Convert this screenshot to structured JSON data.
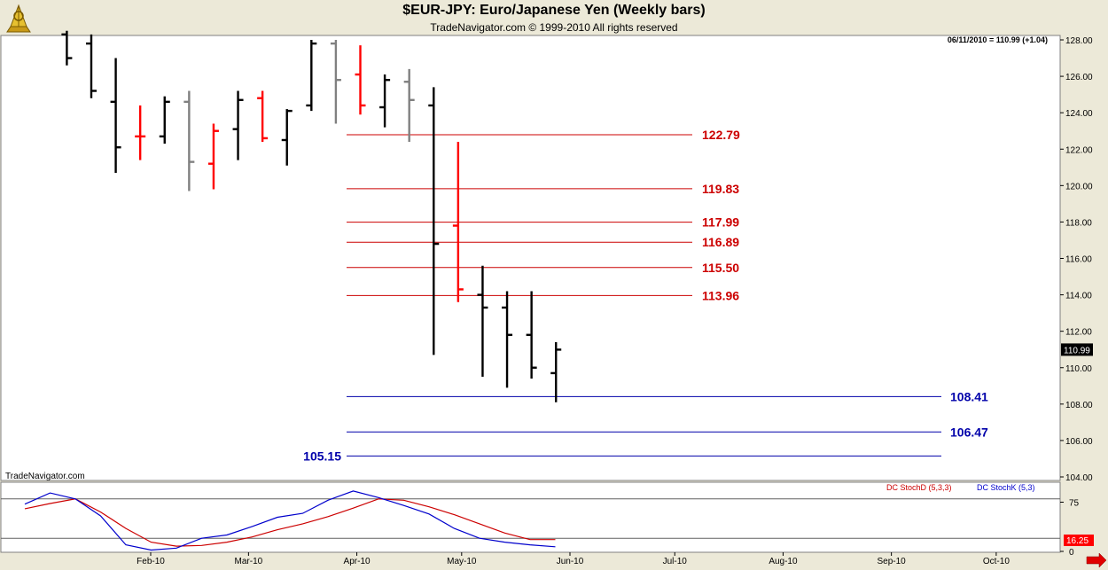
{
  "header": {
    "title": "$EUR-JPY:  Euro/Japanese Yen  (Weekly bars)",
    "subtitle": "TradeNavigator.com © 1999-2010 All rights reserved",
    "last_info": "06/11/2010 = 110.99 (+1.04)",
    "watermark": "TradeNavigator.com"
  },
  "colors": {
    "plot_bg": "#ffffff",
    "up_bar": "#000000",
    "down_bar": "#ff0000",
    "neutral_bar": "#808080",
    "resistance": "#cc0000",
    "support": "#0000aa",
    "stoch_d": "#cc0000",
    "stoch_k": "#0000cc"
  },
  "chart_data": [
    {
      "type": "ohlc",
      "y_axis": {
        "min": 104.0,
        "max": 128.0,
        "ticks": [
          "128.00",
          "126.00",
          "124.00",
          "122.00",
          "120.00",
          "118.00",
          "116.00",
          "114.00",
          "112.00",
          "110.00",
          "108.00",
          "106.00",
          "104.00"
        ]
      },
      "x_axis": {
        "labels": [
          "Feb-10",
          "Mar-10",
          "Apr-10",
          "May-10",
          "Jun-10",
          "Jul-10",
          "Aug-10",
          "Sep-10",
          "Oct-10"
        ]
      },
      "last_price": "110.99",
      "bars": [
        {
          "week": "2010-01-08",
          "open": 128.3,
          "high": 128.5,
          "low": 126.6,
          "close": 127.0,
          "color": "up"
        },
        {
          "week": "2010-01-15",
          "open": 127.8,
          "high": 128.3,
          "low": 124.8,
          "close": 125.2,
          "color": "up"
        },
        {
          "week": "2010-01-22",
          "open": 124.6,
          "high": 127.0,
          "low": 120.7,
          "close": 122.1,
          "color": "up"
        },
        {
          "week": "2010-01-29",
          "open": 122.7,
          "high": 124.4,
          "low": 121.4,
          "close": 122.7,
          "color": "down"
        },
        {
          "week": "2010-02-05",
          "open": 122.7,
          "high": 124.9,
          "low": 122.3,
          "close": 124.6,
          "color": "up"
        },
        {
          "week": "2010-02-12",
          "open": 124.6,
          "high": 125.2,
          "low": 119.7,
          "close": 121.3,
          "color": "neutral"
        },
        {
          "week": "2010-02-19",
          "open": 121.2,
          "high": 123.4,
          "low": 119.8,
          "close": 123.0,
          "color": "down"
        },
        {
          "week": "2010-02-26",
          "open": 123.1,
          "high": 125.2,
          "low": 121.4,
          "close": 124.7,
          "color": "up"
        },
        {
          "week": "2010-03-05",
          "open": 124.8,
          "high": 125.2,
          "low": 122.4,
          "close": 122.6,
          "color": "down"
        },
        {
          "week": "2010-03-12",
          "open": 122.5,
          "high": 124.2,
          "low": 121.1,
          "close": 124.1,
          "color": "up"
        },
        {
          "week": "2010-03-19",
          "open": 124.4,
          "high": 128.0,
          "low": 124.1,
          "close": 127.8,
          "color": "up"
        },
        {
          "week": "2010-03-26",
          "open": 127.8,
          "high": 128.0,
          "low": 123.4,
          "close": 125.8,
          "color": "neutral"
        },
        {
          "week": "2010-04-02",
          "open": 126.1,
          "high": 127.7,
          "low": 123.9,
          "close": 124.4,
          "color": "down"
        },
        {
          "week": "2010-04-09",
          "open": 124.3,
          "high": 126.1,
          "low": 123.2,
          "close": 125.8,
          "color": "up"
        },
        {
          "week": "2010-04-16",
          "open": 125.7,
          "high": 126.4,
          "low": 122.4,
          "close": 124.7,
          "color": "neutral"
        },
        {
          "week": "2010-04-23",
          "open": 124.4,
          "high": 125.4,
          "low": 110.7,
          "close": 116.8,
          "color": "up"
        },
        {
          "week": "2010-04-30",
          "open": 117.8,
          "high": 122.4,
          "low": 113.6,
          "close": 114.3,
          "color": "down"
        },
        {
          "week": "2010-05-07",
          "open": 114.0,
          "high": 115.6,
          "low": 109.5,
          "close": 113.3,
          "color": "up"
        },
        {
          "week": "2010-05-14",
          "open": 113.3,
          "high": 114.2,
          "low": 108.9,
          "close": 111.8,
          "color": "up"
        },
        {
          "week": "2010-05-21",
          "open": 111.8,
          "high": 114.2,
          "low": 109.4,
          "close": 110.0,
          "color": "up"
        },
        {
          "week": "2010-05-28",
          "open": 109.7,
          "high": 111.4,
          "low": 108.1,
          "close": 110.99,
          "color": "up"
        }
      ],
      "levels": [
        {
          "value": 122.79,
          "label": "122.79",
          "kind": "resistance"
        },
        {
          "value": 119.83,
          "label": "119.83",
          "kind": "resistance"
        },
        {
          "value": 117.99,
          "label": "117.99",
          "kind": "resistance"
        },
        {
          "value": 116.89,
          "label": "116.89",
          "kind": "resistance"
        },
        {
          "value": 115.5,
          "label": "115.50",
          "kind": "resistance"
        },
        {
          "value": 113.96,
          "label": "113.96",
          "kind": "resistance"
        },
        {
          "value": 108.41,
          "label": "108.41",
          "kind": "support"
        },
        {
          "value": 106.47,
          "label": "106.47",
          "kind": "support"
        },
        {
          "value": 105.15,
          "label": "105.15",
          "kind": "support"
        }
      ]
    },
    {
      "type": "line",
      "title": "",
      "y_axis": {
        "min": 0,
        "max": 100,
        "ticks": [
          "75",
          "0"
        ],
        "guide_lines": [
          80,
          20
        ]
      },
      "last_value": "16.25",
      "legend": [
        "DC StochD (5,3,3)",
        "DC StochK (5,3)"
      ],
      "series": [
        {
          "name": "DC StochD (5,3,3)",
          "color": "stoch_d",
          "values": [
            65,
            73,
            80,
            60,
            35,
            14,
            8,
            9,
            14,
            22,
            33,
            42,
            53,
            66,
            80,
            78,
            68,
            56,
            42,
            28,
            18,
            18
          ]
        },
        {
          "name": "DC StochK (5,3)",
          "color": "stoch_k",
          "values": [
            72,
            89,
            80,
            54,
            10,
            2,
            5,
            20,
            25,
            38,
            52,
            58,
            78,
            92,
            82,
            70,
            57,
            35,
            20,
            14,
            10,
            7
          ]
        }
      ]
    }
  ]
}
